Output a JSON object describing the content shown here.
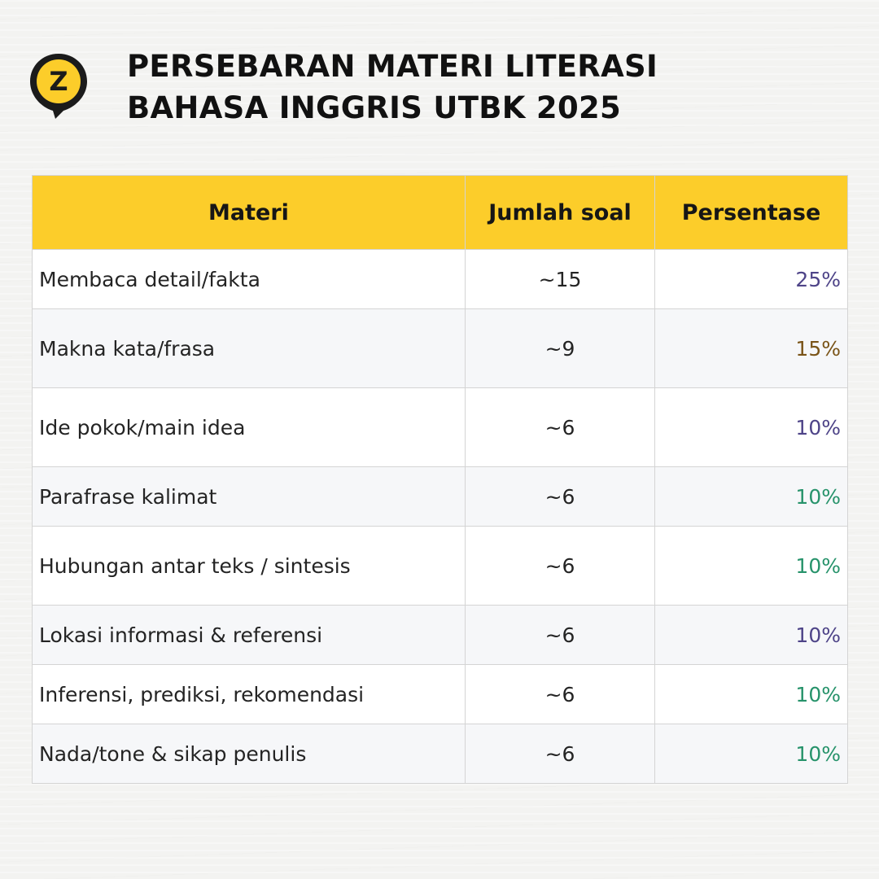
{
  "title": {
    "line1": "PERSEBARAN MATERI LITERASI",
    "line2": "BAHASA INGGRIS UTBK 2025"
  },
  "logo": {
    "icon": "z-location-pin-icon",
    "letter": "Z",
    "color": "#fccd2a",
    "outline": "#1b1b1b"
  },
  "table": {
    "header_color": "#fccd2a",
    "columns": [
      "Materi",
      "Jumlah soal",
      "Persentase"
    ],
    "rows": [
      {
        "materi": "Membaca detail/fakta",
        "jumlah": "~15",
        "persentase": "25%",
        "color": "#4e4488"
      },
      {
        "materi": "Makna kata/frasa",
        "jumlah": "~9",
        "persentase": "15%",
        "color": "#7a5418"
      },
      {
        "materi": "Ide pokok/main idea",
        "jumlah": "~6",
        "persentase": "10%",
        "color": "#4e4488"
      },
      {
        "materi": "Parafrase kalimat",
        "jumlah": "~6",
        "persentase": "10%",
        "color": "#27936b"
      },
      {
        "materi": "Hubungan antar teks / sintesis",
        "jumlah": "~6",
        "persentase": "10%",
        "color": "#27936b"
      },
      {
        "materi": "Lokasi informasi & referensi",
        "jumlah": "~6",
        "persentase": "10%",
        "color": "#4e4488"
      },
      {
        "materi": "Inferensi, prediksi, rekomendasi",
        "jumlah": "~6",
        "persentase": "10%",
        "color": "#27936b"
      },
      {
        "materi": "Nada/tone & sikap penulis",
        "jumlah": "~6",
        "persentase": "10%",
        "color": "#27936b"
      }
    ]
  }
}
